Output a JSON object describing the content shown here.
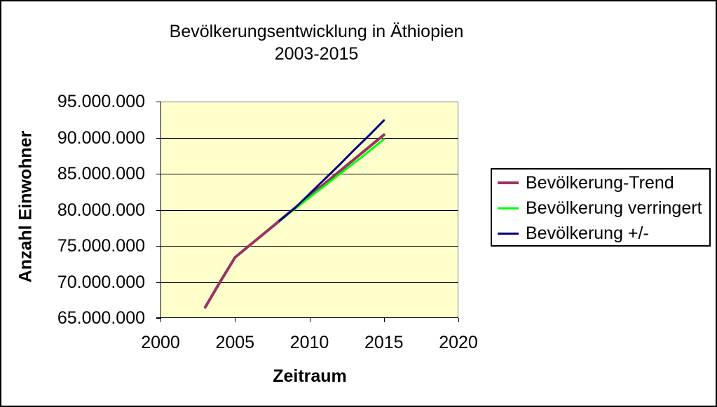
{
  "chart_data": {
    "type": "line",
    "title": "Bevölkerungsentwicklung in Äthiopien 2003-2015",
    "title_lines": [
      "Bevölkerungsentwicklung in Äthiopien",
      "2003-2015"
    ],
    "xlabel": "Zeitraum",
    "ylabel": "Anzahl Einwohner",
    "xlim": [
      2000,
      2020
    ],
    "ylim": [
      65000000,
      95000000
    ],
    "x_ticks": [
      2000,
      2005,
      2010,
      2015,
      2020
    ],
    "y_ticks": [
      95000000,
      90000000,
      85000000,
      80000000,
      75000000,
      70000000,
      65000000
    ],
    "y_tick_labels": [
      "95.000.000",
      "90.000.000",
      "85.000.000",
      "80.000.000",
      "75.000.000",
      "70.000.000",
      "65.000.000"
    ],
    "grid": "horizontal-only",
    "legend_position": "right",
    "plot_bg_color": "#FFFFCC",
    "plot_border_color": "#808080",
    "axis_color": "#000000",
    "gridline_color": "#000000",
    "series": [
      {
        "name": "Bevölkerung-Trend",
        "color": "#993366",
        "width": 4,
        "x": [
          2003,
          2004,
          2005,
          2006,
          2007,
          2008,
          2009,
          2010,
          2011,
          2012,
          2013,
          2014,
          2015
        ],
        "y": [
          66500000,
          70000000,
          73400000,
          75100000,
          76800000,
          78500000,
          80200000,
          81900000,
          83600000,
          85300000,
          87000000,
          88700000,
          90400000
        ]
      },
      {
        "name": "Bevölkerung verringert",
        "color": "#00FF00",
        "width": 3,
        "x": [
          2008,
          2009,
          2010,
          2011,
          2012,
          2013,
          2014,
          2015
        ],
        "y": [
          78500000,
          80100000,
          81700000,
          83300000,
          84900000,
          86500000,
          88100000,
          89800000
        ]
      },
      {
        "name": "Bevölkerung +/-",
        "color": "#000080",
        "width": 3,
        "x": [
          2008,
          2009,
          2010,
          2011,
          2012,
          2013,
          2014,
          2015
        ],
        "y": [
          78500000,
          80200000,
          82200000,
          84200000,
          86200000,
          88300000,
          90300000,
          92400000
        ]
      }
    ]
  }
}
